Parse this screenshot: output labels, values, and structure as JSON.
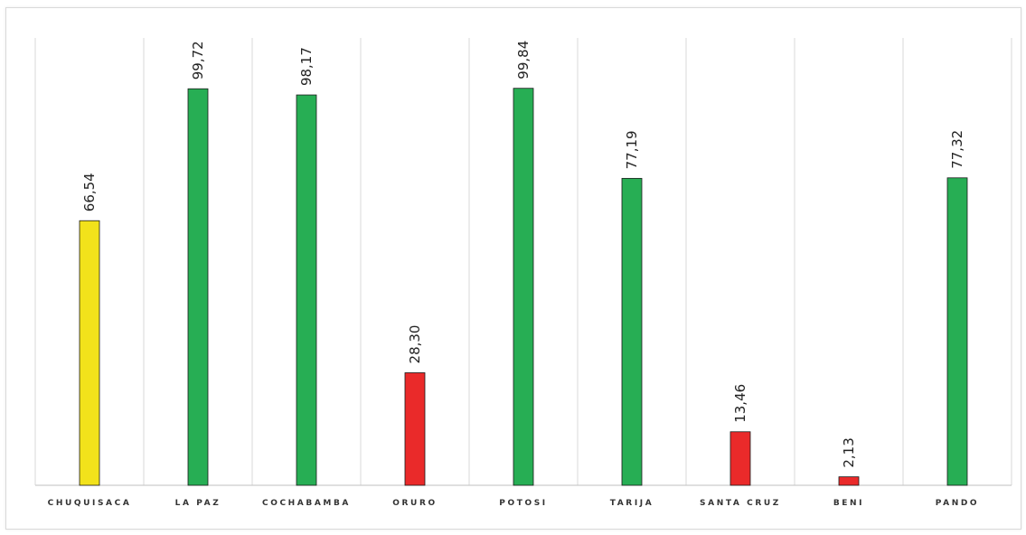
{
  "chart_data": {
    "type": "bar",
    "categories": [
      "CHUQUISACA",
      "LA PAZ",
      "COCHABAMBA",
      "ORURO",
      "POTOSI",
      "TARIJA",
      "SANTA CRUZ",
      "BENI",
      "PANDO"
    ],
    "values": [
      66.54,
      99.72,
      98.17,
      28.3,
      99.84,
      77.19,
      13.46,
      2.13,
      77.32
    ],
    "value_labels": [
      "66,54",
      "99,72",
      "98,17",
      "28,30",
      "99,84",
      "77,19",
      "13,46",
      "2,13",
      "77,32"
    ],
    "bar_colors": [
      "#f2e21b",
      "#27ae54",
      "#27ae54",
      "#ea2a2a",
      "#27ae54",
      "#27ae54",
      "#ea2a2a",
      "#ea2a2a",
      "#27ae54"
    ],
    "title": "",
    "xlabel": "",
    "ylabel": "",
    "ylim": [
      0,
      120
    ],
    "grid": "vertical category separators"
  }
}
